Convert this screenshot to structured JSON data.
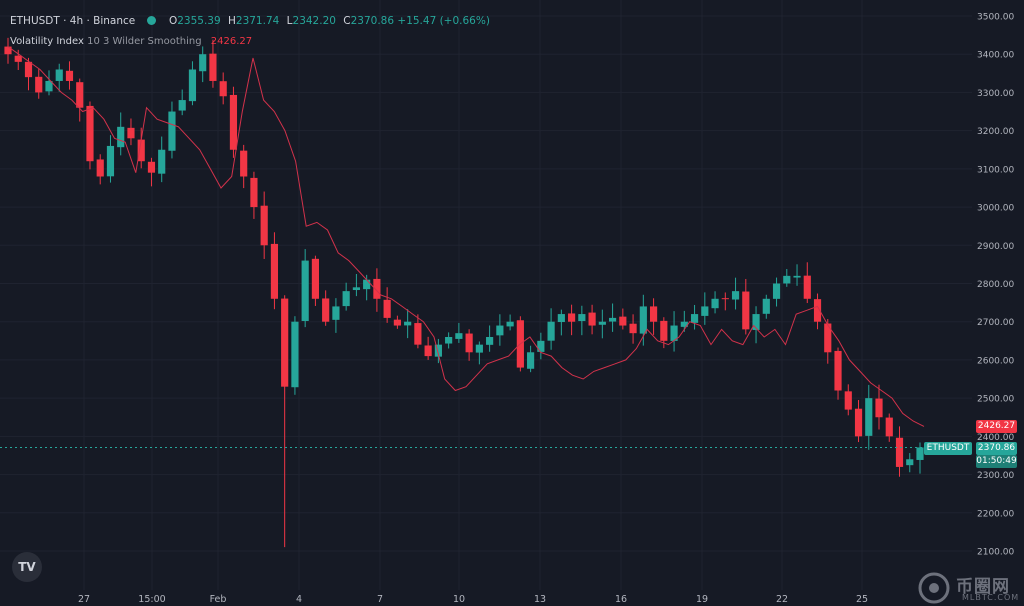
{
  "header": {
    "symbol": "ETHUSDT · 4h · Binance",
    "o_key": "O",
    "o_val": "2355.39",
    "h_key": "H",
    "h_val": "2371.74",
    "l_key": "L",
    "l_val": "2342.20",
    "c_key": "C",
    "c_val": "2370.86",
    "change": "+15.47 (+0.66%)"
  },
  "indicator": {
    "name": "Volatility Index",
    "params": "10 3 Wilder Smoothing",
    "value": "2426.27"
  },
  "price_tags": {
    "indicator_value": "2426.27",
    "symbol_tag": "ETHUSDT",
    "last_price": "2370.86",
    "countdown": "01:50:49"
  },
  "logo": {
    "text": "TV"
  },
  "watermark": {
    "text": "币圈网",
    "site": "MLBTC.COM"
  },
  "colors": {
    "background": "#161a25",
    "up": "#26a69a",
    "down": "#f23645",
    "indicator": "#d2324b",
    "grid": "#1f2330",
    "axis_text": "#b2b5be"
  },
  "chart_data": {
    "type": "candlestick",
    "title": "ETHUSDT · 4h · Binance",
    "y_axis": {
      "side": "right",
      "min": 2100,
      "max": 3500,
      "step": 100,
      "tick_labels": [
        "3500.00",
        "3400.00",
        "3300.00",
        "3200.00",
        "3100.00",
        "3000.00",
        "2900.00",
        "2800.00",
        "2700.00",
        "2600.00",
        "2500.00",
        "2400.00",
        "2300.00",
        "2200.00",
        "2100.00"
      ]
    },
    "x_axis": {
      "tick_labels": [
        "27",
        "15:00",
        "Feb",
        "4",
        "7",
        "10",
        "13",
        "16",
        "19",
        "22",
        "25"
      ]
    },
    "grid": true,
    "series": [
      {
        "name": "ETHUSDT",
        "kind": "ohlc",
        "description": "approximate path of closes across the visible range",
        "close_path": [
          3400,
          3380,
          3340,
          3300,
          3330,
          3360,
          3330,
          3260,
          3120,
          3080,
          3160,
          3210,
          3180,
          3120,
          3090,
          3150,
          3250,
          3280,
          3360,
          3400,
          3330,
          3290,
          3150,
          3080,
          3000,
          2900,
          2760,
          2530,
          2700,
          2860,
          2760,
          2700,
          2740,
          2780,
          2790,
          2810,
          2760,
          2710,
          2690,
          2700,
          2640,
          2610,
          2640,
          2660,
          2670,
          2620,
          2640,
          2660,
          2690,
          2700,
          2580,
          2620,
          2650,
          2700,
          2720,
          2700,
          2720,
          2690,
          2700,
          2710,
          2690,
          2670,
          2740,
          2700,
          2650,
          2690,
          2700,
          2720,
          2740,
          2760,
          2760,
          2780,
          2680,
          2720,
          2760,
          2800,
          2820,
          2820,
          2760,
          2700,
          2620,
          2520,
          2470,
          2400,
          2500,
          2450,
          2400,
          2320,
          2340,
          2371
        ]
      },
      {
        "name": "Volatility Index",
        "kind": "line",
        "description": "trailing stop line",
        "values": [
          3420,
          3400,
          3380,
          3360,
          3330,
          3300,
          3280,
          3250,
          3260,
          3230,
          3180,
          3170,
          3090,
          3260,
          3230,
          3220,
          3210,
          3180,
          3150,
          3100,
          3050,
          3080,
          3250,
          3390,
          3280,
          3250,
          3200,
          3120,
          2950,
          2960,
          2940,
          2880,
          2860,
          2830,
          2800,
          2770,
          2760,
          2740,
          2720,
          2700,
          2660,
          2550,
          2520,
          2530,
          2560,
          2590,
          2600,
          2610,
          2640,
          2660,
          2620,
          2610,
          2580,
          2560,
          2550,
          2570,
          2580,
          2590,
          2600,
          2630,
          2680,
          2650,
          2640,
          2660,
          2700,
          2690,
          2640,
          2680,
          2650,
          2640,
          2690,
          2660,
          2680,
          2640,
          2720,
          2730,
          2740,
          2690,
          2650,
          2600,
          2570,
          2540,
          2520,
          2500,
          2460,
          2440,
          2426
        ]
      }
    ],
    "last_price": 2370.86,
    "indicator_last": 2426.27,
    "low_wick": 2110,
    "high": 3410
  }
}
